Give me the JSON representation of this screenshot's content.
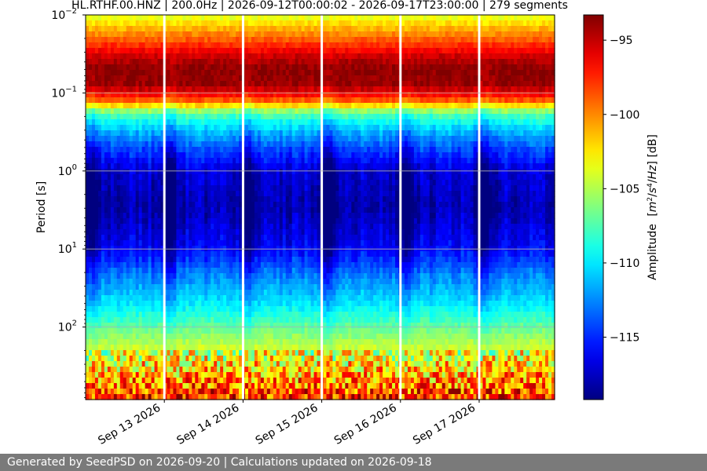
{
  "chart_data": {
    "type": "heatmap",
    "title": "HL.RTHF.00.HNZ | 200.0Hz | 2026-09-12T00:00:02 - 2026-09-17T23:00:00 | 279 segments",
    "xlabel": "",
    "ylabel": "Period [s]",
    "y_scale": "log",
    "y_inverted": true,
    "ylim_seconds": [
      0.01,
      850
    ],
    "x_range": [
      "2026-09-12T00:00:02",
      "2026-09-17T23:00:00"
    ],
    "x_ticks": [
      {
        "date": "2026-09-13",
        "label": "Sep 13 2026"
      },
      {
        "date": "2026-09-14",
        "label": "Sep 14 2026"
      },
      {
        "date": "2026-09-15",
        "label": "Sep 15 2026"
      },
      {
        "date": "2026-09-16",
        "label": "Sep 16 2026"
      },
      {
        "date": "2026-09-17",
        "label": "Sep 17 2026"
      }
    ],
    "y_ticks": [
      {
        "value": 0.01,
        "base": "10",
        "exp": "−2"
      },
      {
        "value": 0.1,
        "base": "10",
        "exp": "−1"
      },
      {
        "value": 1,
        "base": "10",
        "exp": "0"
      },
      {
        "value": 10,
        "base": "10",
        "exp": "1"
      },
      {
        "value": 100,
        "base": "10",
        "exp": "2"
      }
    ],
    "grid": true,
    "colormap": "jet",
    "colorbar": {
      "label": "Amplitude",
      "units": "[m²/s⁴/Hz] [dB]",
      "range_db": [
        -119.2,
        -93.3
      ],
      "ticks": [
        -95,
        -100,
        -105,
        -110,
        -115
      ]
    },
    "gap_dates": [
      "2026-09-13",
      "2026-09-14",
      "2026-09-15",
      "2026-09-16",
      "2026-09-17"
    ],
    "amplitude_profile_db": [
      {
        "period_s": 0.01,
        "db": -104
      },
      {
        "period_s": 0.02,
        "db": -99
      },
      {
        "period_s": 0.035,
        "db": -95
      },
      {
        "period_s": 0.05,
        "db": -93.5
      },
      {
        "period_s": 0.08,
        "db": -94
      },
      {
        "period_s": 0.12,
        "db": -98
      },
      {
        "period_s": 0.18,
        "db": -107
      },
      {
        "period_s": 0.3,
        "db": -111
      },
      {
        "period_s": 0.5,
        "db": -114
      },
      {
        "period_s": 1,
        "db": -117
      },
      {
        "period_s": 3,
        "db": -118
      },
      {
        "period_s": 10,
        "db": -116
      },
      {
        "period_s": 20,
        "db": -113
      },
      {
        "period_s": 50,
        "db": -110
      },
      {
        "period_s": 100,
        "db": -107
      },
      {
        "period_s": 200,
        "db": -104
      },
      {
        "period_s": 400,
        "db": -101
      },
      {
        "period_s": 850,
        "db": -97
      }
    ],
    "day_night_contrast_db": 5
  },
  "footer": {
    "text": "Generated by SeedPSD on 2026-09-20 | Calculations updated on 2026-09-18"
  },
  "colors": {
    "footer_bg": "#7a7a7a",
    "footer_text": "#ffffff"
  }
}
